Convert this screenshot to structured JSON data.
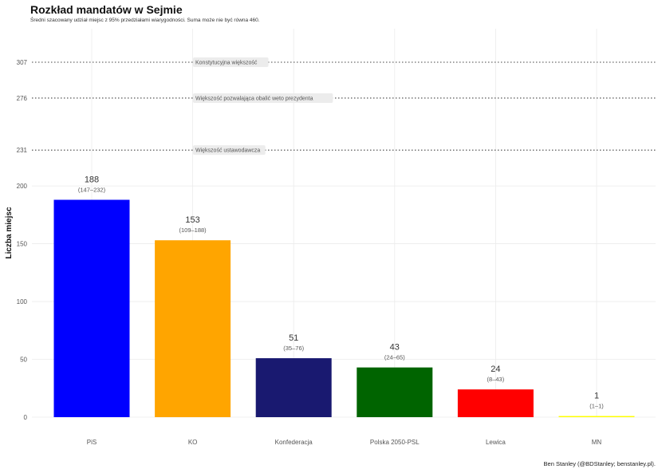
{
  "title": "Rozkład mandatów w Sejmie",
  "subtitle": "Średni szacowany udział miejsc z 95% przedziałami wiarygodności. Suma może nie być równa 460.",
  "caption": "Ben Stanley (@BDStanley; benstanley.pl).",
  "chart_data": {
    "type": "bar",
    "title": "Rozkład mandatów w Sejmie",
    "ylabel": "Liczba miejsc",
    "xlabel": "",
    "ylim": [
      0,
      320
    ],
    "y_ticks": [
      0,
      50,
      100,
      150,
      200
    ],
    "grid": true,
    "categories": [
      "PiS",
      "KO",
      "Konfederacja",
      "Polska 2050-PSL",
      "Lewica",
      "MN"
    ],
    "values": [
      188,
      153,
      51,
      43,
      24,
      1
    ],
    "intervals": [
      "(147–232)",
      "(109–188)",
      "(35–76)",
      "(24–65)",
      "(8–43)",
      "(1–1)"
    ],
    "colors": [
      "#0000ff",
      "#ffa500",
      "#191970",
      "#006400",
      "#ff0000",
      "#ffff00"
    ],
    "reference_lines": [
      {
        "value": 307,
        "tick": "307",
        "label": "Konstytucyjna większość"
      },
      {
        "value": 276,
        "tick": "276",
        "label": "Większość pozwalająca obalić weto prezydenta"
      },
      {
        "value": 231,
        "tick": "231",
        "label": "Większość ustawodawcza"
      }
    ]
  }
}
